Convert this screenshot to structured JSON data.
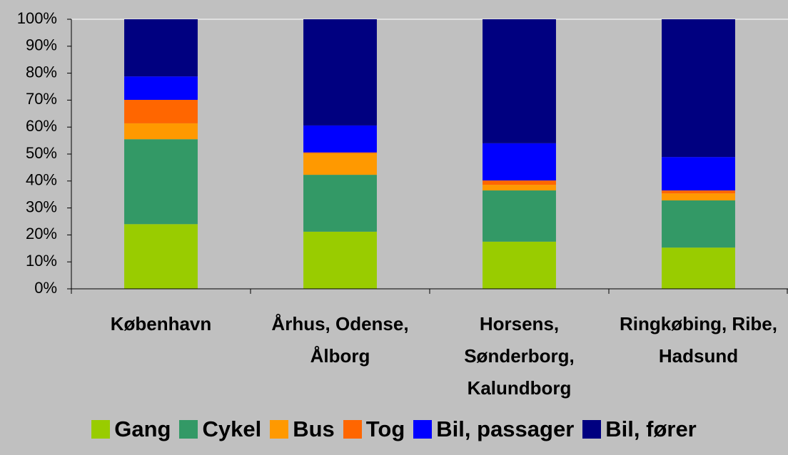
{
  "chart_data": {
    "type": "stacked_bar",
    "categories": [
      "København",
      "Århus, Odense, Ålborg",
      "Horsens, Sønderborg, Kalundborg",
      "Ringkøbing, Ribe, Hadsund"
    ],
    "series": [
      {
        "name": "Gang",
        "color": "#99cc00",
        "values": [
          24,
          21.2,
          17.5,
          15.3
        ]
      },
      {
        "name": "Cykel",
        "color": "#339966",
        "values": [
          31.5,
          21.1,
          19,
          17.5
        ]
      },
      {
        "name": "Bus",
        "color": "#ff9900",
        "values": [
          5.9,
          8,
          2.1,
          2.6
        ]
      },
      {
        "name": "Tog",
        "color": "#ff6600",
        "values": [
          8.7,
          0.3,
          1.6,
          1.1
        ]
      },
      {
        "name": "Bil, passager",
        "color": "#0000ff",
        "values": [
          8.7,
          10,
          13.8,
          12.4
        ]
      },
      {
        "name": "Bil, fører",
        "color": "#000080",
        "values": [
          21.2,
          39.4,
          46,
          51.1
        ]
      }
    ],
    "ylim": [
      0,
      100
    ],
    "yticks": [
      {
        "value": 0,
        "label": "0%"
      },
      {
        "value": 10,
        "label": "10%"
      },
      {
        "value": 20,
        "label": "20%"
      },
      {
        "value": 30,
        "label": "30%"
      },
      {
        "value": 40,
        "label": "40%"
      },
      {
        "value": 50,
        "label": "50%"
      },
      {
        "value": 60,
        "label": "60%"
      },
      {
        "value": 70,
        "label": "70%"
      },
      {
        "value": 80,
        "label": "80%"
      },
      {
        "value": 90,
        "label": "90%"
      },
      {
        "value": 100,
        "label": "100%"
      }
    ],
    "legend": "bottom"
  }
}
